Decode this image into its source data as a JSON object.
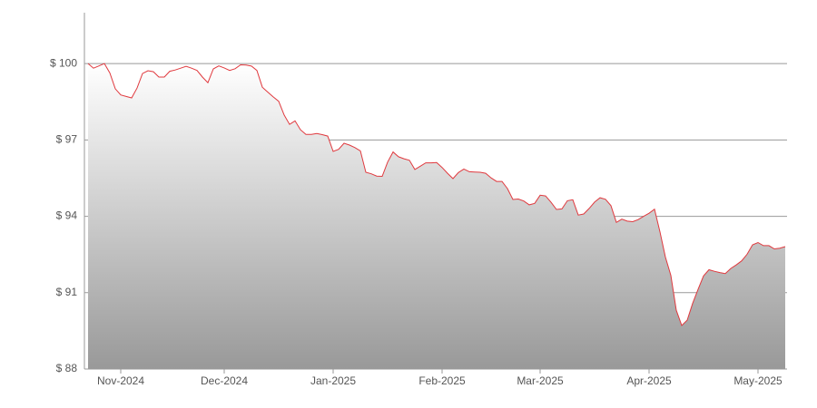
{
  "chart_data": {
    "type": "area",
    "categories": [
      null,
      null,
      null,
      null,
      null,
      null,
      "Nov-2024",
      null,
      null,
      null,
      null,
      null,
      null,
      null,
      null,
      null,
      null,
      null,
      null,
      null,
      null,
      null,
      null,
      null,
      null,
      "Dec-2024",
      null,
      null,
      null,
      null,
      null,
      null,
      null,
      null,
      null,
      null,
      null,
      null,
      null,
      null,
      null,
      null,
      null,
      null,
      null,
      "Jan-2025",
      null,
      null,
      null,
      null,
      null,
      null,
      null,
      null,
      null,
      null,
      null,
      null,
      null,
      null,
      null,
      null,
      null,
      null,
      null,
      "Feb-2025",
      null,
      null,
      null,
      null,
      null,
      null,
      null,
      null,
      null,
      null,
      null,
      null,
      null,
      null,
      null,
      null,
      null,
      "Mar-2025",
      null,
      null,
      null,
      null,
      null,
      null,
      null,
      null,
      null,
      null,
      null,
      null,
      null,
      null,
      null,
      null,
      null,
      null,
      null,
      "Apr-2025",
      null,
      null,
      null,
      null,
      null,
      null,
      null,
      null,
      null,
      null,
      null,
      null,
      null,
      null,
      null,
      null,
      null,
      null,
      null,
      "May-2025",
      null,
      null,
      null,
      null,
      null
    ],
    "values": [
      100.0,
      99.82,
      99.91,
      100.0,
      99.63,
      99.01,
      98.77,
      98.71,
      98.65,
      99.04,
      99.61,
      99.72,
      99.68,
      99.47,
      99.47,
      99.7,
      99.75,
      99.82,
      99.89,
      99.82,
      99.73,
      99.47,
      99.25,
      99.79,
      99.91,
      99.83,
      99.73,
      99.8,
      99.95,
      99.94,
      99.9,
      99.73,
      99.07,
      98.88,
      98.69,
      98.52,
      97.98,
      97.61,
      97.75,
      97.4,
      97.22,
      97.22,
      97.25,
      97.21,
      97.15,
      96.55,
      96.63,
      96.87,
      96.8,
      96.7,
      96.57,
      95.73,
      95.67,
      95.58,
      95.57,
      96.13,
      96.53,
      96.34,
      96.26,
      96.2,
      95.84,
      95.97,
      96.1,
      96.1,
      96.11,
      95.92,
      95.69,
      95.48,
      95.72,
      95.86,
      95.75,
      95.74,
      95.73,
      95.69,
      95.51,
      95.37,
      95.37,
      95.09,
      94.66,
      94.68,
      94.6,
      94.45,
      94.51,
      94.83,
      94.8,
      94.55,
      94.27,
      94.29,
      94.61,
      94.65,
      94.05,
      94.09,
      94.31,
      94.56,
      94.73,
      94.67,
      94.42,
      93.76,
      93.89,
      93.81,
      93.79,
      93.87,
      94.0,
      94.12,
      94.28,
      93.39,
      92.4,
      91.68,
      90.31,
      89.71,
      89.92,
      90.58,
      91.13,
      91.66,
      91.9,
      91.84,
      91.79,
      91.75,
      91.95,
      92.09,
      92.25,
      92.51,
      92.88,
      92.97,
      92.85,
      92.85,
      92.72,
      92.75,
      92.81
    ],
    "color": "#e0393e",
    "ylim": [
      88,
      102
    ],
    "yticks": [
      {
        "value": 88,
        "label": "$ 88"
      },
      {
        "value": 91,
        "label": "$ 91"
      },
      {
        "value": 94,
        "label": "$ 94"
      },
      {
        "value": 97,
        "label": "$ 97"
      },
      {
        "value": 100,
        "label": "$ 100"
      }
    ],
    "grid": true
  }
}
